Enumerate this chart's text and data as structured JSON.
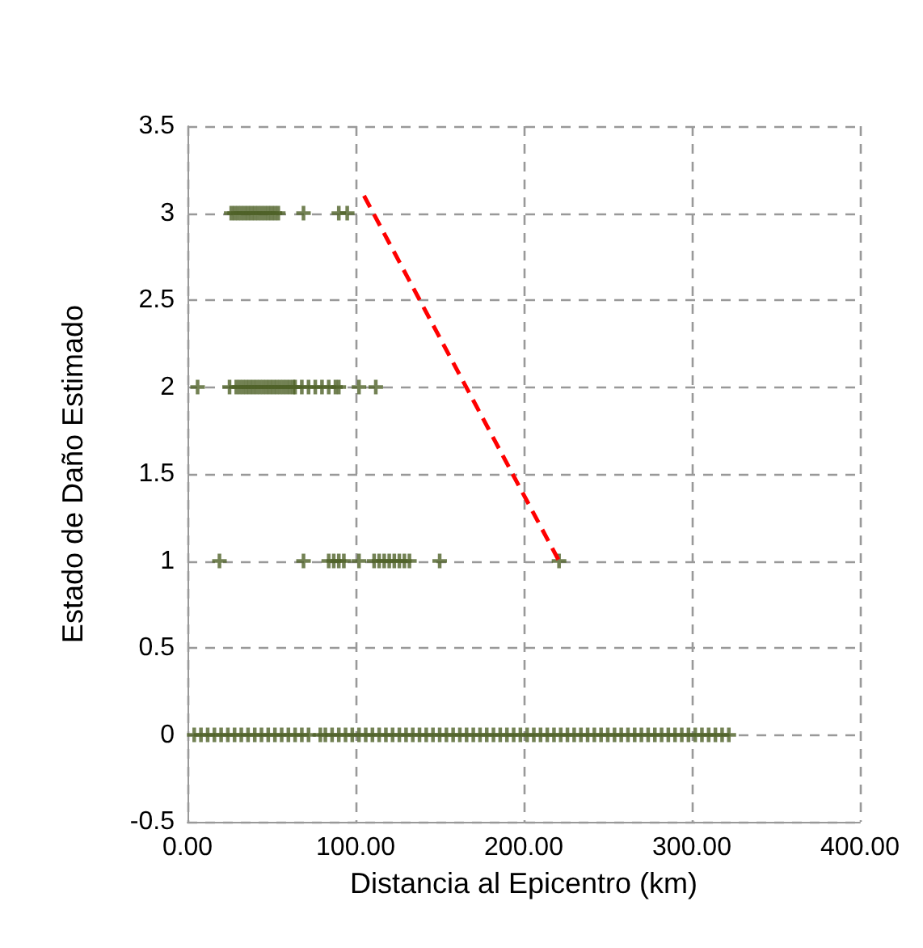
{
  "chart_data": {
    "type": "scatter",
    "xlabel": "Distancia al Epicentro (km)",
    "ylabel": "Estado de Daño Estimado",
    "xlim": [
      0,
      400
    ],
    "xticks": [
      {
        "value": 0,
        "label": "0.00"
      },
      {
        "value": 100,
        "label": "100.00"
      },
      {
        "value": 200,
        "label": "200.00"
      },
      {
        "value": 300,
        "label": "300.00"
      },
      {
        "value": 400,
        "label": "400.00"
      }
    ],
    "ylim": [
      -0.5,
      3.5
    ],
    "yticks": [
      -0.5,
      0,
      0.5,
      1,
      1.5,
      2,
      2.5,
      3,
      3.5
    ],
    "grid": true,
    "marker": "cross",
    "series": [
      {
        "color": "#4f6228",
        "x": [
          4,
          8,
          12,
          16,
          20,
          24,
          28,
          32,
          36,
          40,
          44,
          48,
          52,
          56,
          60,
          64,
          68,
          72,
          79,
          82,
          86,
          90,
          94,
          98,
          102,
          106,
          110,
          114,
          118,
          122,
          126,
          130,
          134,
          138,
          142,
          146,
          150,
          154,
          158,
          162,
          166,
          170,
          174,
          178,
          182,
          186,
          190,
          194,
          198,
          202,
          206,
          210,
          214,
          218,
          222,
          226,
          230,
          234,
          238,
          242,
          246,
          250,
          254,
          258,
          262,
          266,
          270,
          274,
          278,
          282,
          286,
          290,
          294,
          298,
          302,
          306,
          310,
          314,
          318,
          322,
          26,
          28,
          30,
          32,
          34,
          36,
          38,
          40,
          42,
          44,
          46,
          48,
          50,
          52,
          54,
          69,
          90,
          95,
          6,
          25,
          29,
          31,
          33,
          35,
          37,
          39,
          41,
          43,
          45,
          47,
          49,
          51,
          53,
          55,
          57,
          59,
          61,
          63,
          64,
          68,
          72,
          76,
          80,
          84,
          88,
          90,
          102,
          112,
          19,
          69,
          84,
          87,
          90,
          93,
          102,
          111,
          114,
          117,
          120,
          123,
          126,
          129,
          132,
          150,
          221
        ],
        "values": [
          0,
          0,
          0,
          0,
          0,
          0,
          0,
          0,
          0,
          0,
          0,
          0,
          0,
          0,
          0,
          0,
          0,
          0,
          0,
          0,
          0,
          0,
          0,
          0,
          0,
          0,
          0,
          0,
          0,
          0,
          0,
          0,
          0,
          0,
          0,
          0,
          0,
          0,
          0,
          0,
          0,
          0,
          0,
          0,
          0,
          0,
          0,
          0,
          0,
          0,
          0,
          0,
          0,
          0,
          0,
          0,
          0,
          0,
          0,
          0,
          0,
          0,
          0,
          0,
          0,
          0,
          0,
          0,
          0,
          0,
          0,
          0,
          0,
          0,
          0,
          0,
          0,
          0,
          0,
          0,
          3,
          3,
          3,
          3,
          3,
          3,
          3,
          3,
          3,
          3,
          3,
          3,
          3,
          3,
          3,
          3,
          3,
          3,
          2,
          2,
          2,
          2,
          2,
          2,
          2,
          2,
          2,
          2,
          2,
          2,
          2,
          2,
          2,
          2,
          2,
          2,
          2,
          2,
          2,
          2,
          2,
          2,
          2,
          2,
          2,
          2,
          2,
          2,
          1,
          1,
          1,
          1,
          1,
          1,
          1,
          1,
          1,
          1,
          1,
          1,
          1,
          1,
          1,
          1,
          1
        ]
      },
      {
        "type": "line",
        "color": "#ff0000",
        "line_style": "dashed",
        "marker": "none",
        "x": [
          105,
          221
        ],
        "values": [
          3.1,
          1
        ]
      }
    ]
  }
}
